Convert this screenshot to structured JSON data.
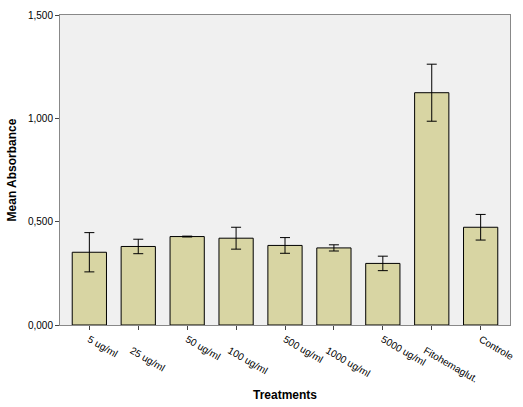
{
  "chart_data": {
    "type": "bar",
    "x_label": "Treatments",
    "y_label": "Mean Absorbance",
    "categories": [
      "5 ug/ml",
      "25 ug/ml",
      "50 ug/ml",
      "100 ug/ml",
      "500 ug/ml",
      "1000 ug/ml",
      "5000 ug/ml",
      "Fitohemaglut.",
      "Controle"
    ],
    "values": [
      0.352,
      0.38,
      0.428,
      0.42,
      0.385,
      0.373,
      0.298,
      1.124,
      0.473
    ],
    "error": [
      0.095,
      0.035,
      0.002,
      0.053,
      0.038,
      0.015,
      0.035,
      0.138,
      0.062
    ],
    "color": "#d8d5a3",
    "ylim": [
      0,
      1.5
    ],
    "yticks": [
      {
        "value": 0,
        "label": "0,000"
      },
      {
        "value": 0.5,
        "label": "0,500"
      },
      {
        "value": 1.0,
        "label": "1,000"
      },
      {
        "value": 1.5,
        "label": "1,500"
      }
    ],
    "grid": false
  }
}
